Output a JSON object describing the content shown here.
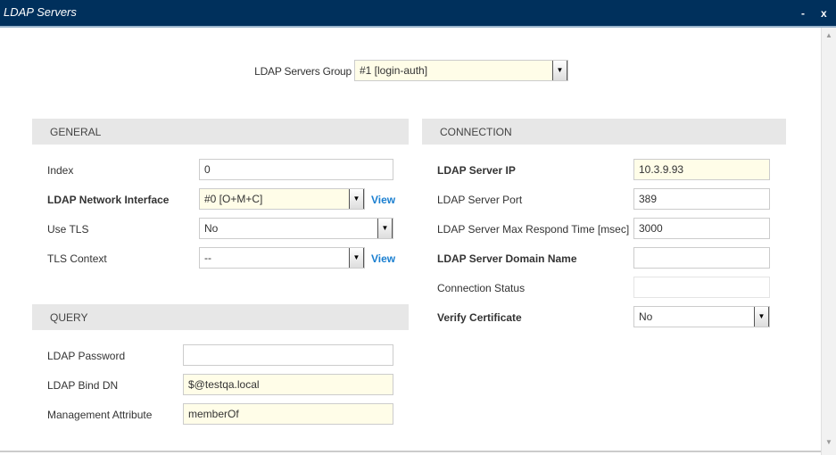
{
  "window": {
    "title": "LDAP Servers",
    "minimize": "-",
    "close": "x"
  },
  "group": {
    "label": "LDAP Servers Group",
    "value": "#1 [login-auth]"
  },
  "general": {
    "header": "GENERAL",
    "index_label": "Index",
    "index_value": "0",
    "netif_label": "LDAP Network Interface",
    "netif_value": "#0 [O+M+C]",
    "view": "View",
    "tls_label": "Use TLS",
    "tls_value": "No",
    "tlsctx_label": "TLS Context",
    "tlsctx_value": "--"
  },
  "query": {
    "header": "QUERY",
    "pw_label": "LDAP Password",
    "pw_value": "",
    "binddn_label": "LDAP Bind DN",
    "binddn_value": "$@testqa.local",
    "mgmt_label": "Management Attribute",
    "mgmt_value": "memberOf"
  },
  "connection": {
    "header": "CONNECTION",
    "ip_label": "LDAP Server IP",
    "ip_value": "10.3.9.93",
    "port_label": "LDAP Server Port",
    "port_value": "389",
    "time_label": "LDAP Server Max Respond Time [msec]",
    "time_value": "3000",
    "domain_label": "LDAP Server Domain Name",
    "domain_value": "",
    "status_label": "Connection Status",
    "status_value": "",
    "verify_label": "Verify Certificate",
    "verify_value": "No"
  }
}
